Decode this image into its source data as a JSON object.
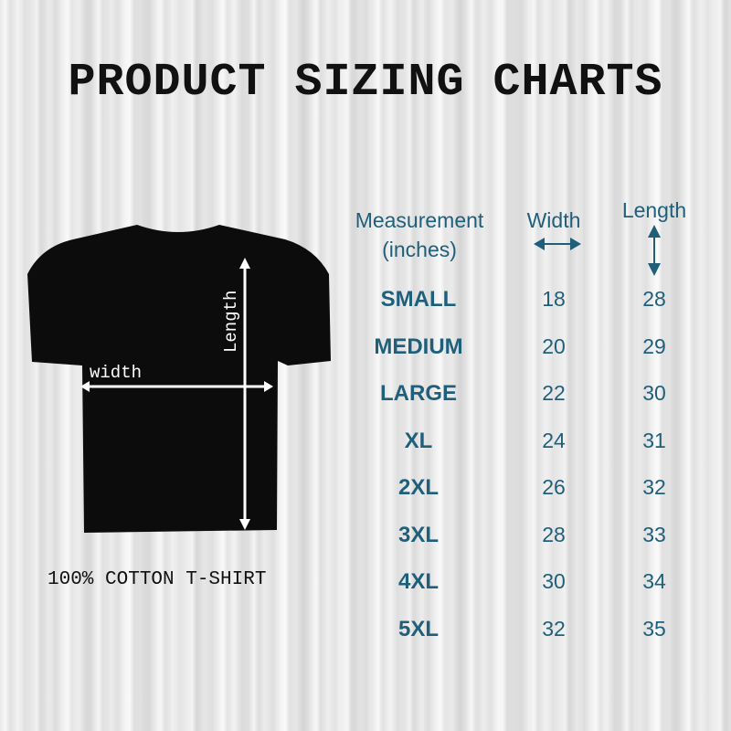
{
  "title": "PRODUCT SIZING CHARTS",
  "shirt": {
    "width_label": "width",
    "length_label": "Length",
    "caption": "100% COTTON T-SHIRT"
  },
  "table": {
    "headers": {
      "measurement": "Measurement",
      "unit": "(inches)",
      "width": "Width",
      "length": "Length"
    },
    "rows": [
      {
        "size": "SMALL",
        "width": "18",
        "length": "28"
      },
      {
        "size": "MEDIUM",
        "width": "20",
        "length": "29"
      },
      {
        "size": "LARGE",
        "width": "22",
        "length": "30"
      },
      {
        "size": "XL",
        "width": "24",
        "length": "31"
      },
      {
        "size": "2XL",
        "width": "26",
        "length": "32"
      },
      {
        "size": "3XL",
        "width": "28",
        "length": "33"
      },
      {
        "size": "4XL",
        "width": "30",
        "length": "34"
      },
      {
        "size": "5XL",
        "width": "32",
        "length": "35"
      }
    ]
  },
  "colors": {
    "accent": "#1f5f7a",
    "shirt": "#0c0c0c"
  }
}
